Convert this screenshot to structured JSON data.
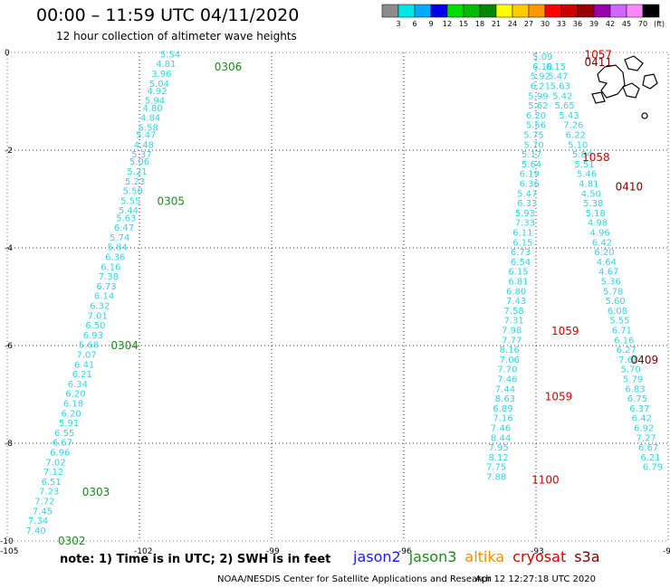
{
  "header": {
    "title": "00:00 – 11:59 UTC 04/11/2020",
    "subtitle": "12 hour collection of altimeter wave heights"
  },
  "colorbar": {
    "labels": [
      "3",
      "6",
      "9",
      "12",
      "15",
      "18",
      "21",
      "24",
      "27",
      "30",
      "33",
      "36",
      "39",
      "42",
      "45",
      "70",
      "(ft)"
    ],
    "colors": [
      "#8c8c8c",
      "#00e6e6",
      "#00aaff",
      "#0000ee",
      "#00dd00",
      "#00bb00",
      "#008800",
      "#ffff00",
      "#ffcc00",
      "#ff9900",
      "#ff0000",
      "#cc0000",
      "#990000",
      "#9900aa",
      "#cc66ff",
      "#ff88ff",
      "#000000"
    ]
  },
  "chart_data": {
    "type": "scatter",
    "xlim": [
      -105,
      -90
    ],
    "ylim": [
      -10,
      0
    ],
    "xticks": [
      "-105",
      "-102",
      "-99",
      "-96",
      "-93",
      "-90"
    ],
    "yticks": [
      "0",
      "-2",
      "-4",
      "-6",
      "-8",
      "-10"
    ],
    "grid": true,
    "tracks": [
      {
        "satellite": "jason3",
        "points": [
          {
            "lon": -101.3,
            "lat": -0.1,
            "swh": "5.54"
          },
          {
            "lon": -101.4,
            "lat": -0.3,
            "swh": "4.81"
          },
          {
            "lon": -101.5,
            "lat": -0.5,
            "swh": "3.96"
          },
          {
            "lon": -101.55,
            "lat": -0.7,
            "swh": "5.04"
          },
          {
            "lon": -101.6,
            "lat": -0.85,
            "swh": "4.92"
          },
          {
            "lon": -101.65,
            "lat": -1.05,
            "swh": "5.94"
          },
          {
            "lon": -101.7,
            "lat": -1.2,
            "swh": "4.80"
          },
          {
            "lon": -101.75,
            "lat": -1.4,
            "swh": "4.84"
          },
          {
            "lon": -101.8,
            "lat": -1.6,
            "swh": "5.58"
          },
          {
            "lon": -101.85,
            "lat": -1.75,
            "swh": "5.47"
          },
          {
            "lon": -101.9,
            "lat": -1.95,
            "swh": "4.48"
          },
          {
            "lon": -101.95,
            "lat": -2.15,
            "swh": "5.37"
          },
          {
            "lon": -102.0,
            "lat": -2.3,
            "swh": "5.06"
          },
          {
            "lon": -102.05,
            "lat": -2.5,
            "swh": "5.21"
          },
          {
            "lon": -102.1,
            "lat": -2.7,
            "swh": "5.23"
          },
          {
            "lon": -102.15,
            "lat": -2.9,
            "swh": "5.50"
          },
          {
            "lon": -102.2,
            "lat": -3.1,
            "swh": "5.55"
          },
          {
            "lon": -102.25,
            "lat": -3.3,
            "swh": "5.44"
          },
          {
            "lon": -102.3,
            "lat": -3.45,
            "swh": "5.63"
          },
          {
            "lon": -102.35,
            "lat": -3.65,
            "swh": "6.47"
          },
          {
            "lon": -102.45,
            "lat": -3.85,
            "swh": "5.74"
          },
          {
            "lon": -102.5,
            "lat": -4.05,
            "swh": "5.84"
          },
          {
            "lon": -102.55,
            "lat": -4.25,
            "swh": "6.36"
          },
          {
            "lon": -102.65,
            "lat": -4.45,
            "swh": "6.16"
          },
          {
            "lon": -102.7,
            "lat": -4.65,
            "swh": "7.38"
          },
          {
            "lon": -102.75,
            "lat": -4.85,
            "swh": "6.73"
          },
          {
            "lon": -102.8,
            "lat": -5.05,
            "swh": "6.14"
          },
          {
            "lon": -102.9,
            "lat": -5.25,
            "swh": "6.32"
          },
          {
            "lon": -102.95,
            "lat": -5.45,
            "swh": "7.01"
          },
          {
            "lon": -103.0,
            "lat": -5.65,
            "swh": "6.50"
          },
          {
            "lon": -103.05,
            "lat": -5.85,
            "swh": "6.93"
          },
          {
            "lon": -103.15,
            "lat": -6.05,
            "swh": "5.68"
          },
          {
            "lon": -103.2,
            "lat": -6.25,
            "swh": "7.07"
          },
          {
            "lon": -103.25,
            "lat": -6.45,
            "swh": "6.41"
          },
          {
            "lon": -103.3,
            "lat": -6.65,
            "swh": "6.21"
          },
          {
            "lon": -103.4,
            "lat": -6.85,
            "swh": "6.34"
          },
          {
            "lon": -103.45,
            "lat": -7.05,
            "swh": "6.20"
          },
          {
            "lon": -103.5,
            "lat": -7.25,
            "swh": "6.18"
          },
          {
            "lon": -103.55,
            "lat": -7.45,
            "swh": "6.20"
          },
          {
            "lon": -103.6,
            "lat": -7.65,
            "swh": "5.91"
          },
          {
            "lon": -103.7,
            "lat": -7.85,
            "swh": "6.55"
          },
          {
            "lon": -103.75,
            "lat": -8.05,
            "swh": "6.67"
          },
          {
            "lon": -103.8,
            "lat": -8.25,
            "swh": "6.96"
          },
          {
            "lon": -103.9,
            "lat": -8.45,
            "swh": "7.02"
          },
          {
            "lon": -103.95,
            "lat": -8.65,
            "swh": "7.12"
          },
          {
            "lon": -104.0,
            "lat": -8.85,
            "swh": "6.51"
          },
          {
            "lon": -104.05,
            "lat": -9.05,
            "swh": "7.23"
          },
          {
            "lon": -104.15,
            "lat": -9.25,
            "swh": "7.72"
          },
          {
            "lon": -104.2,
            "lat": -9.45,
            "swh": "7.45"
          },
          {
            "lon": -104.3,
            "lat": -9.65,
            "swh": "7.34"
          },
          {
            "lon": -104.35,
            "lat": -9.85,
            "swh": "7.40"
          }
        ]
      },
      {
        "satellite": "cryosat",
        "points": [
          {
            "lon": -92.85,
            "lat": -0.15,
            "swh": "5.09"
          },
          {
            "lon": -92.85,
            "lat": -0.35,
            "swh": "6.18"
          },
          {
            "lon": -92.9,
            "lat": -0.55,
            "swh": "5.92"
          },
          {
            "lon": -92.9,
            "lat": -0.75,
            "swh": "6.21"
          },
          {
            "lon": -92.95,
            "lat": -0.95,
            "swh": "5.99"
          },
          {
            "lon": -92.95,
            "lat": -1.15,
            "swh": "5.62"
          },
          {
            "lon": -93.0,
            "lat": -1.35,
            "swh": "6.20"
          },
          {
            "lon": -93.0,
            "lat": -1.55,
            "swh": "5.56"
          },
          {
            "lon": -93.05,
            "lat": -1.75,
            "swh": "5.75"
          },
          {
            "lon": -93.05,
            "lat": -1.95,
            "swh": "5.70"
          },
          {
            "lon": -93.1,
            "lat": -2.15,
            "swh": "5.17"
          },
          {
            "lon": -93.1,
            "lat": -2.35,
            "swh": "5.64"
          },
          {
            "lon": -93.15,
            "lat": -2.55,
            "swh": "6.19"
          },
          {
            "lon": -93.15,
            "lat": -2.75,
            "swh": "6.36"
          },
          {
            "lon": -93.2,
            "lat": -2.95,
            "swh": "5.47"
          },
          {
            "lon": -93.2,
            "lat": -3.15,
            "swh": "6.33"
          },
          {
            "lon": -93.25,
            "lat": -3.35,
            "swh": "5.93"
          },
          {
            "lon": -93.25,
            "lat": -3.55,
            "swh": "7.33"
          },
          {
            "lon": -93.3,
            "lat": -3.75,
            "swh": "6.11"
          },
          {
            "lon": -93.3,
            "lat": -3.95,
            "swh": "6.15"
          },
          {
            "lon": -93.35,
            "lat": -4.15,
            "swh": "6.73"
          },
          {
            "lon": -93.35,
            "lat": -4.35,
            "swh": "6.54"
          },
          {
            "lon": -93.4,
            "lat": -4.55,
            "swh": "6.15"
          },
          {
            "lon": -93.4,
            "lat": -4.75,
            "swh": "6.81"
          },
          {
            "lon": -93.45,
            "lat": -4.95,
            "swh": "6.80"
          },
          {
            "lon": -93.45,
            "lat": -5.15,
            "swh": "7.43"
          },
          {
            "lon": -93.5,
            "lat": -5.35,
            "swh": "7.58"
          },
          {
            "lon": -93.5,
            "lat": -5.55,
            "swh": "7.31"
          },
          {
            "lon": -93.55,
            "lat": -5.75,
            "swh": "7.98"
          },
          {
            "lon": -93.55,
            "lat": -5.95,
            "swh": "7.77"
          },
          {
            "lon": -93.6,
            "lat": -6.15,
            "swh": "8.16"
          },
          {
            "lon": -93.6,
            "lat": -6.35,
            "swh": "7.06"
          },
          {
            "lon": -93.65,
            "lat": -6.55,
            "swh": "7.70"
          },
          {
            "lon": -93.65,
            "lat": -6.75,
            "swh": "7.46"
          },
          {
            "lon": -93.7,
            "lat": -6.95,
            "swh": "7.44"
          },
          {
            "lon": -93.7,
            "lat": -7.15,
            "swh": "8.63"
          },
          {
            "lon": -93.75,
            "lat": -7.35,
            "swh": "6.89"
          },
          {
            "lon": -93.75,
            "lat": -7.55,
            "swh": "7.16"
          },
          {
            "lon": -93.8,
            "lat": -7.75,
            "swh": "7.46"
          },
          {
            "lon": -93.8,
            "lat": -7.95,
            "swh": "8.44"
          },
          {
            "lon": -93.85,
            "lat": -8.15,
            "swh": "7.95"
          },
          {
            "lon": -93.85,
            "lat": -8.35,
            "swh": "8.12"
          },
          {
            "lon": -93.9,
            "lat": -8.55,
            "swh": "7.75"
          },
          {
            "lon": -93.9,
            "lat": -8.75,
            "swh": "7.88"
          }
        ]
      },
      {
        "satellite": "s3a",
        "points": [
          {
            "lon": -92.55,
            "lat": -0.35,
            "swh": "6.15"
          },
          {
            "lon": -92.5,
            "lat": -0.55,
            "swh": "5.47"
          },
          {
            "lon": -92.45,
            "lat": -0.75,
            "swh": "5.63"
          },
          {
            "lon": -92.4,
            "lat": -0.95,
            "swh": "5.42"
          },
          {
            "lon": -92.35,
            "lat": -1.15,
            "swh": "5.65"
          },
          {
            "lon": -92.25,
            "lat": -1.35,
            "swh": "5.43"
          },
          {
            "lon": -92.15,
            "lat": -1.55,
            "swh": "7.26"
          },
          {
            "lon": -92.1,
            "lat": -1.75,
            "swh": "6.22"
          },
          {
            "lon": -92.05,
            "lat": -1.95,
            "swh": "5.10"
          },
          {
            "lon": -91.95,
            "lat": -2.15,
            "swh": "5.84"
          },
          {
            "lon": -91.9,
            "lat": -2.35,
            "swh": "5.51"
          },
          {
            "lon": -91.85,
            "lat": -2.55,
            "swh": "5.46"
          },
          {
            "lon": -91.8,
            "lat": -2.75,
            "swh": "4.81"
          },
          {
            "lon": -91.75,
            "lat": -2.95,
            "swh": "4.50"
          },
          {
            "lon": -91.7,
            "lat": -3.15,
            "swh": "5.38"
          },
          {
            "lon": -91.65,
            "lat": -3.35,
            "swh": "5.18"
          },
          {
            "lon": -91.6,
            "lat": -3.55,
            "swh": "4.98"
          },
          {
            "lon": -91.55,
            "lat": -3.75,
            "swh": "4.96"
          },
          {
            "lon": -91.5,
            "lat": -3.95,
            "swh": "6.42"
          },
          {
            "lon": -91.45,
            "lat": -4.15,
            "swh": "6.20"
          },
          {
            "lon": -91.4,
            "lat": -4.35,
            "swh": "4.64"
          },
          {
            "lon": -91.35,
            "lat": -4.55,
            "swh": "4.67"
          },
          {
            "lon": -91.3,
            "lat": -4.75,
            "swh": "5.36"
          },
          {
            "lon": -91.25,
            "lat": -4.95,
            "swh": "5.78"
          },
          {
            "lon": -91.2,
            "lat": -5.15,
            "swh": "5.60"
          },
          {
            "lon": -91.15,
            "lat": -5.35,
            "swh": "6.08"
          },
          {
            "lon": -91.1,
            "lat": -5.55,
            "swh": "5.55"
          },
          {
            "lon": -91.05,
            "lat": -5.75,
            "swh": "6.71"
          },
          {
            "lon": -91.0,
            "lat": -5.95,
            "swh": "6.16"
          },
          {
            "lon": -90.95,
            "lat": -6.15,
            "swh": "6.27"
          },
          {
            "lon": -90.9,
            "lat": -6.35,
            "swh": "7.68"
          },
          {
            "lon": -90.85,
            "lat": -6.55,
            "swh": "5.70"
          },
          {
            "lon": -90.8,
            "lat": -6.75,
            "swh": "5.79"
          },
          {
            "lon": -90.75,
            "lat": -6.95,
            "swh": "6.83"
          },
          {
            "lon": -90.7,
            "lat": -7.15,
            "swh": "6.75"
          },
          {
            "lon": -90.65,
            "lat": -7.35,
            "swh": "6.37"
          },
          {
            "lon": -90.6,
            "lat": -7.55,
            "swh": "6.42"
          },
          {
            "lon": -90.55,
            "lat": -7.75,
            "swh": "6.92"
          },
          {
            "lon": -90.5,
            "lat": -7.95,
            "swh": "7.27"
          },
          {
            "lon": -90.45,
            "lat": -8.15,
            "swh": "6.67"
          },
          {
            "lon": -90.4,
            "lat": -8.35,
            "swh": "6.21"
          },
          {
            "lon": -90.35,
            "lat": -8.55,
            "swh": "6.79"
          }
        ]
      }
    ],
    "time_labels": [
      {
        "text": "0306",
        "lon": -100.3,
        "lat": -0.3,
        "color": "#1a8c1a"
      },
      {
        "text": "0305",
        "lon": -101.6,
        "lat": -3.05,
        "color": "#1a8c1a"
      },
      {
        "text": "0304",
        "lon": -102.65,
        "lat": -6.0,
        "color": "#1a8c1a"
      },
      {
        "text": "0303",
        "lon": -103.3,
        "lat": -9.0,
        "color": "#1a8c1a"
      },
      {
        "text": "0302",
        "lon": -103.85,
        "lat": -10.0,
        "color": "#1a8c1a"
      },
      {
        "text": "1057",
        "lon": -91.9,
        "lat": -0.05,
        "color": "#d40000"
      },
      {
        "text": "0411",
        "lon": -91.9,
        "lat": -0.2,
        "color": "#7a0000"
      },
      {
        "text": "1058",
        "lon": -91.95,
        "lat": -2.15,
        "color": "#d40000"
      },
      {
        "text": "0410",
        "lon": -91.2,
        "lat": -2.75,
        "color": "#7a0000"
      },
      {
        "text": "1059",
        "lon": -92.65,
        "lat": -5.7,
        "color": "#d40000"
      },
      {
        "text": "1059",
        "lon": -92.8,
        "lat": -7.05,
        "color": "#d40000"
      },
      {
        "text": "0409",
        "lon": -90.85,
        "lat": -6.3,
        "color": "#7a0000"
      },
      {
        "text": "1100",
        "lon": -93.1,
        "lat": -8.75,
        "color": "#d40000"
      },
      {
        "text": "",
        "lon": -90.05,
        "lat": -9.15,
        "color": "#d40000"
      }
    ]
  },
  "note": "note:  1) Time is in UTC;  2) SWH is in feet",
  "legend": [
    {
      "label": "jason2",
      "color": "#1a1aff"
    },
    {
      "label": "jason3",
      "color": "#1a8c1a"
    },
    {
      "label": "altika",
      "color": "#ff8c00"
    },
    {
      "label": "cryosat",
      "color": "#d40000"
    },
    {
      "label": "s3a",
      "color": "#7a0000"
    }
  ],
  "footer": {
    "credit": "NOAA/NESDIS Center for Satellite Applications and Research",
    "timestamp": "Apr 12 12:27:18 UTC 2020"
  }
}
